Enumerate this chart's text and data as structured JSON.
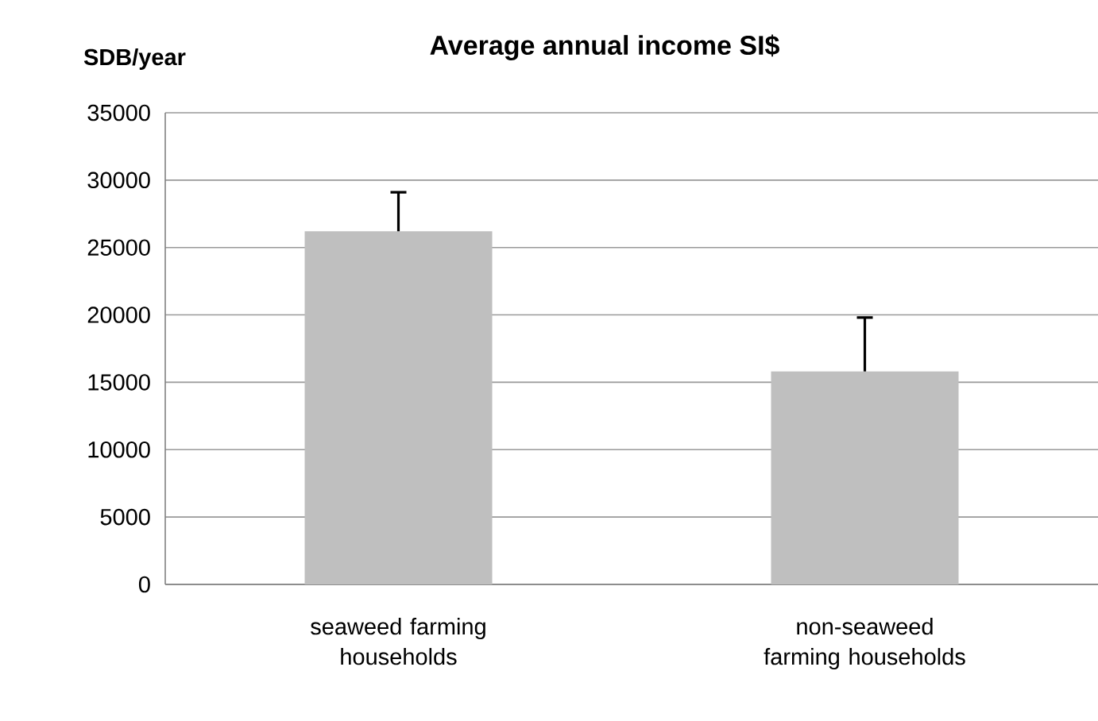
{
  "chart_data": {
    "type": "bar",
    "title": "Average annual income SI$",
    "ylabel": "SDB/year",
    "categories": [
      "seaweed farming households",
      "non-seaweed farming households"
    ],
    "values": [
      26200,
      15800
    ],
    "color": "#bfbfbf",
    "errors": [
      [
        26200,
        29100
      ],
      [
        15800,
        19800
      ]
    ],
    "ylim": [
      0,
      35000
    ],
    "yticks": [
      0,
      5000,
      10000,
      15000,
      20000,
      25000,
      30000,
      35000
    ],
    "grid": true
  }
}
